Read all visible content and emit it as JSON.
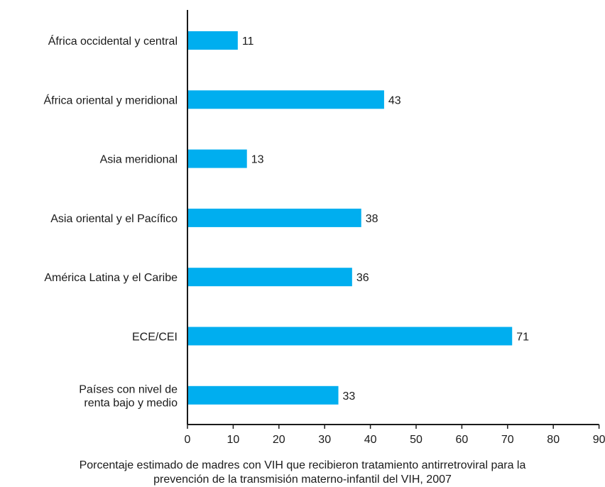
{
  "chart_data": {
    "type": "bar",
    "orientation": "horizontal",
    "categories": [
      [
        "África occidental y central"
      ],
      [
        "África oriental y meridional"
      ],
      [
        "Asia meridional"
      ],
      [
        "Asia oriental y el Pacífico"
      ],
      [
        "América Latina y el Caribe"
      ],
      [
        "ECE/CEI"
      ],
      [
        "Países con nivel de",
        "renta bajo y medio"
      ]
    ],
    "values": [
      11,
      43,
      13,
      38,
      36,
      71,
      33
    ],
    "value_labels": [
      "11",
      "43",
      "13",
      "38",
      "36",
      "71",
      "33"
    ],
    "xticks": [
      "0",
      "10",
      "20",
      "30",
      "40",
      "50",
      "60",
      "70",
      "80",
      "90"
    ],
    "xlim": [
      0,
      90
    ],
    "xlabel_lines": [
      "Porcentaje estimado de madres con VIH que recibieron tratamiento antirretroviral para la",
      "prevención de la transmisión materno-infantil del VIH, 2007"
    ],
    "bar_color": "#00aeef",
    "axis_color": "#1a1a1a",
    "grid": false
  }
}
